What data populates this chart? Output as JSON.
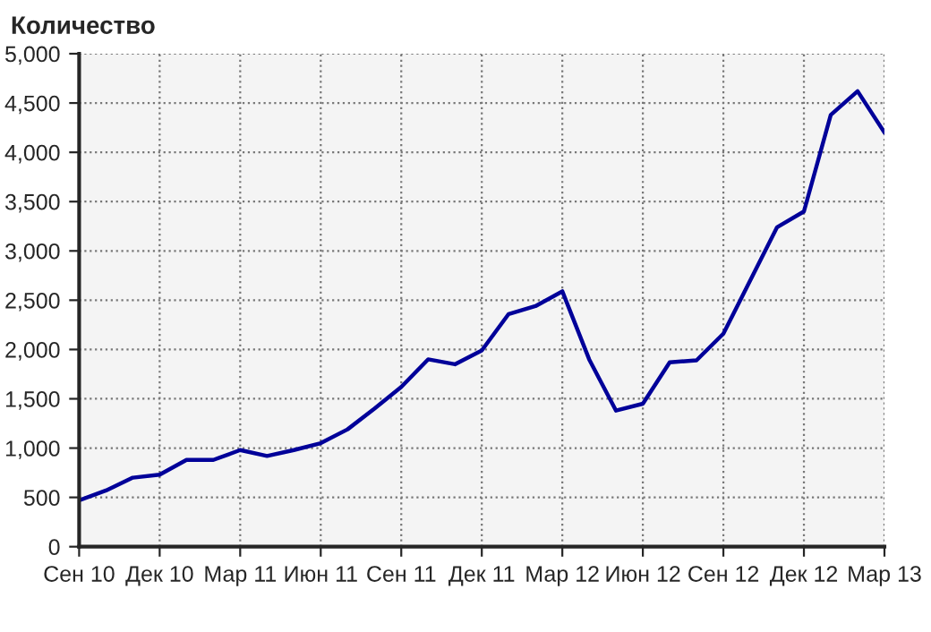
{
  "chart_data": {
    "type": "line",
    "ylabel": "Количество",
    "categories": [
      "Сен 10",
      null,
      null,
      "Дек 10",
      null,
      null,
      "Мар 11",
      null,
      null,
      "Июн 11",
      null,
      null,
      "Сен 11",
      null,
      null,
      "Дек 11",
      null,
      null,
      "Мар 12",
      null,
      null,
      "Июн 12",
      null,
      null,
      "Сен 12",
      null,
      null,
      "Дек 12",
      null,
      null,
      "Мар 13"
    ],
    "series": [
      {
        "color": "#000099",
        "values": [
          470,
          570,
          700,
          730,
          880,
          880,
          980,
          920,
          980,
          1050,
          1190,
          1400,
          1620,
          1900,
          1850,
          1990,
          2360,
          2440,
          2590,
          1900,
          1380,
          1450,
          1870,
          1890,
          2160,
          2700,
          3240,
          3400,
          4380,
          4620,
          4200
        ]
      }
    ],
    "ylim": [
      0,
      5000
    ],
    "yticks": [
      0,
      {
        "value": 500,
        "label": "500"
      },
      {
        "value": 1000,
        "label": "1,000"
      },
      {
        "value": 1500,
        "label": "1,500"
      },
      {
        "value": 2000,
        "label": "2,000"
      },
      {
        "value": 2500,
        "label": "2,500"
      },
      {
        "value": 3000,
        "label": "3,000"
      },
      {
        "value": 3500,
        "label": "3,500"
      },
      {
        "value": 4000,
        "label": "4,000"
      },
      {
        "value": 4500,
        "label": "4,500"
      },
      {
        "value": 5000,
        "label": "5,000"
      }
    ],
    "grid": true,
    "line_style": "solid",
    "marker": "none",
    "legend": false
  }
}
